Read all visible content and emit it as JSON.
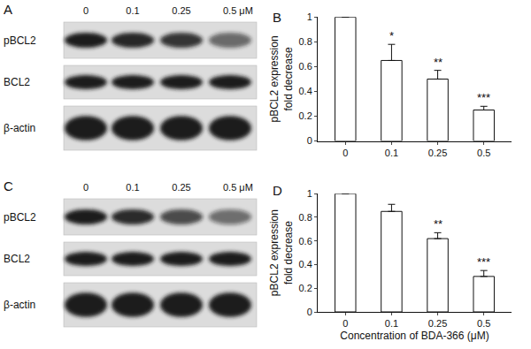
{
  "blots": [
    {
      "panel": "A",
      "lanes": [
        "0",
        "0.1",
        "0.25",
        "0.5 μM"
      ],
      "rows": [
        {
          "label": "pBCL2",
          "intensities": [
            1,
            0.95,
            0.85,
            0.6
          ]
        },
        {
          "label": "BCL2",
          "intensities": [
            1,
            1,
            1,
            1
          ]
        },
        {
          "label": "β-actin",
          "intensities": [
            1,
            1,
            1,
            1
          ]
        }
      ]
    },
    {
      "panel": "C",
      "lanes": [
        "0",
        "0.1",
        "0.25",
        "0.5 μM"
      ],
      "rows": [
        {
          "label": "pBCL2",
          "intensities": [
            1,
            0.9,
            0.75,
            0.55
          ]
        },
        {
          "label": "BCL2",
          "intensities": [
            1,
            1,
            1,
            1
          ]
        },
        {
          "label": "β-actin",
          "intensities": [
            1,
            1,
            1,
            1
          ]
        }
      ]
    }
  ],
  "chart_data": [
    {
      "panel": "B",
      "type": "bar",
      "categories": [
        "0",
        "0.1",
        "0.25",
        "0.5"
      ],
      "values": [
        1,
        0.65,
        0.5,
        0.25
      ],
      "errors": [
        null,
        0.13,
        0.07,
        0.03
      ],
      "significance": [
        null,
        "*",
        "**",
        "***"
      ],
      "color": "#ffffff",
      "ylim": [
        0,
        1
      ],
      "yticks": [
        0,
        0.2,
        0.4,
        0.6,
        0.8,
        1
      ],
      "y_label": "pBCL2 expression\nfold decrease",
      "grid": false
    },
    {
      "panel": "D",
      "type": "bar",
      "categories": [
        "0",
        "0.1",
        "0.25",
        "0.5"
      ],
      "values": [
        1,
        0.85,
        0.62,
        0.3
      ],
      "errors": [
        null,
        0.06,
        0.05,
        0.05
      ],
      "significance": [
        null,
        null,
        "**",
        "***"
      ],
      "color": "#ffffff",
      "ylim": [
        0,
        1
      ],
      "yticks": [
        0,
        0.2,
        0.4,
        0.6,
        0.8,
        1
      ],
      "y_label": "pBCL2 expression\nfold decrease",
      "x_label": "Concentration of BDA-366 (μM)",
      "grid": false
    }
  ]
}
